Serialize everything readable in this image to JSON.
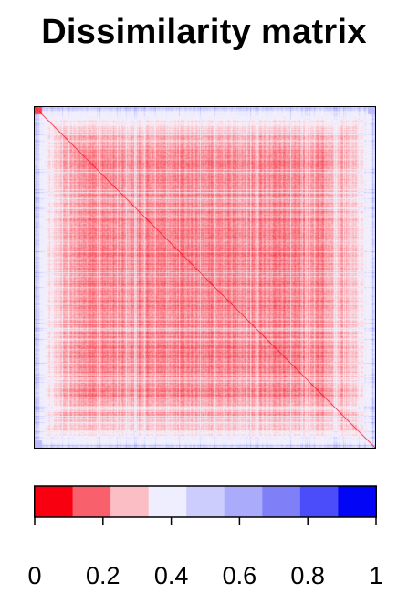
{
  "chart_data": {
    "type": "heatmap",
    "title": "Dissimilarity matrix",
    "xlabel": "",
    "ylabel": "",
    "matrix_shape": "square, symmetric, zero diagonal",
    "value_range": [
      0,
      1
    ],
    "typical_center_value": 0.15,
    "typical_edge_value": 0.5,
    "colorbar": {
      "breaks": [
        0,
        0.1,
        0.2,
        0.3,
        0.4,
        0.5,
        0.6,
        0.7,
        0.8,
        0.9,
        1.0
      ],
      "colors": [
        "#f8000f",
        "#f8606c",
        "#fbbec5",
        "#eeeeff",
        "#ccccfd",
        "#aaabfb",
        "#7f7ff8",
        "#4b4dfa",
        "#0306f6"
      ],
      "tick_labels": [
        "0",
        "0.2",
        "0.4",
        "0.6",
        "0.8",
        "1"
      ],
      "tick_values": [
        0,
        0.2,
        0.4,
        0.6,
        0.8,
        1.0
      ],
      "orientation": "horizontal",
      "placement": "bottom"
    }
  }
}
